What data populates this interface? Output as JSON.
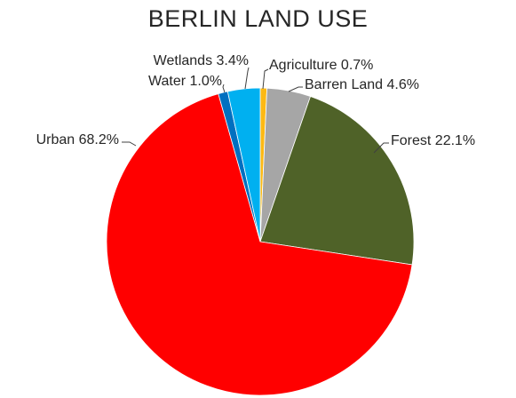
{
  "chart_data": {
    "type": "pie",
    "title": "BERLIN LAND USE",
    "slices": [
      {
        "name": "Agriculture",
        "value": 0.7,
        "color": "#FDB913",
        "label": "Agriculture 0.7%"
      },
      {
        "name": "Barren Land",
        "value": 4.6,
        "color": "#A6A6A6",
        "label": "Barren Land 4.6%"
      },
      {
        "name": "Forest",
        "value": 22.1,
        "color": "#4F6228",
        "label": "Forest 22.1%"
      },
      {
        "name": "Urban",
        "value": 68.2,
        "color": "#FF0000",
        "label": "Urban 68.2%"
      },
      {
        "name": "Water",
        "value": 1.0,
        "color": "#0070C0",
        "label": "Water 1.0%"
      },
      {
        "name": "Wetlands",
        "value": 3.4,
        "color": "#00B0F0",
        "label": "Wetlands 3.4%"
      }
    ],
    "legend": "none"
  }
}
